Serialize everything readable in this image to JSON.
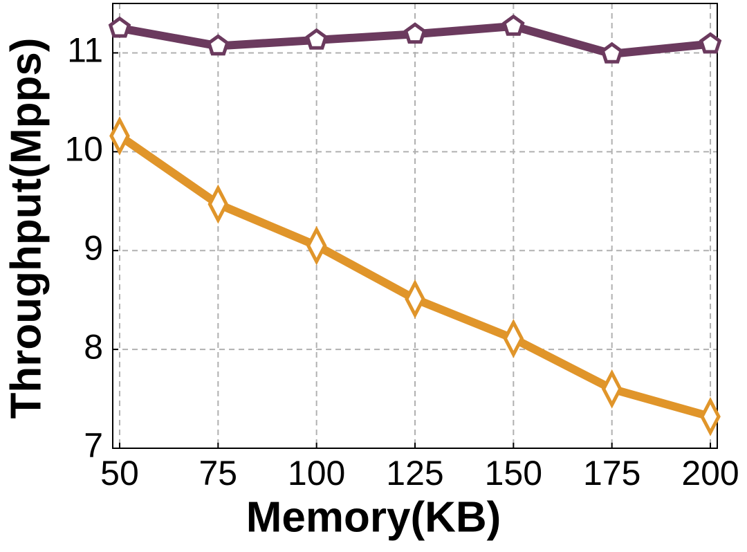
{
  "chart_data": {
    "type": "line",
    "x_label": "Memory(KB)",
    "y_label": "Throughput(Mpps)",
    "x": [
      50,
      75,
      100,
      125,
      150,
      175,
      200
    ],
    "series": [
      {
        "color": "#6b3a5e",
        "marker": "pentagon",
        "values": [
          11.25,
          11.07,
          11.13,
          11.19,
          11.27,
          10.99,
          11.09
        ]
      },
      {
        "color": "#e0952a",
        "marker": "diamond",
        "values": [
          10.16,
          9.47,
          9.05,
          8.51,
          8.11,
          7.6,
          7.32
        ]
      }
    ],
    "xlim": [
      48.25,
      201.75
    ],
    "ylim": [
      7,
      11.5
    ],
    "xticks": [
      50,
      75,
      100,
      125,
      150,
      175,
      200
    ],
    "yticks": [
      7,
      8,
      9,
      10,
      11
    ],
    "grid": true
  }
}
